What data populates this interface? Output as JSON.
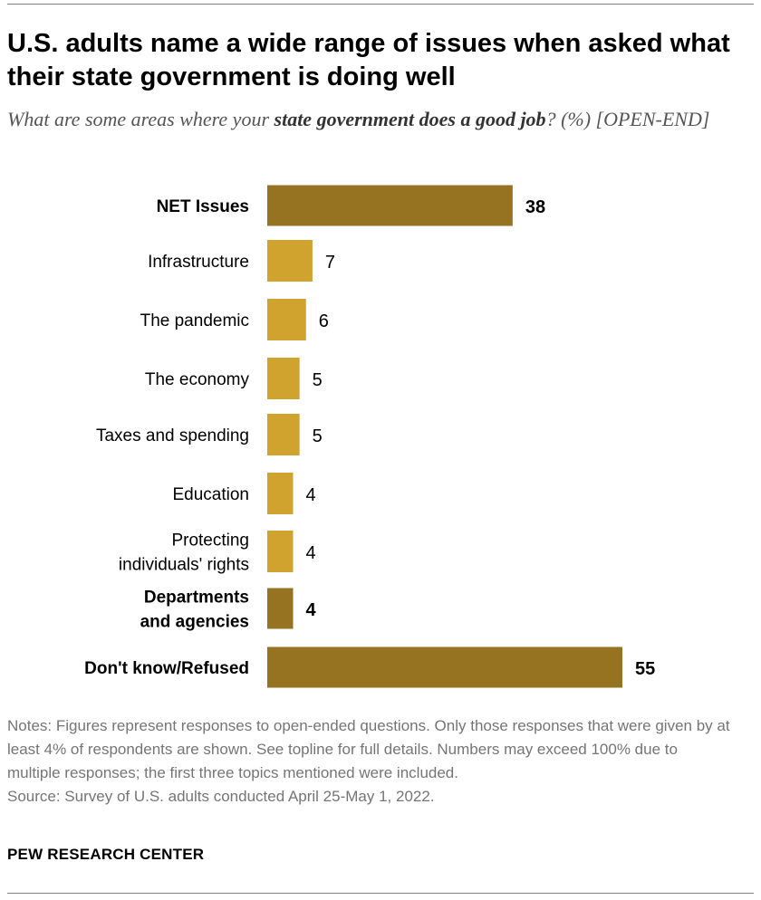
{
  "title": "U.S. adults name a wide range of issues when asked what their state government is doing well",
  "subtitle": {
    "part1": "What are some areas where your ",
    "bold": "state government does a good job",
    "part2": "? (%) [OPEN-END]"
  },
  "chart_data": {
    "type": "bar",
    "orientation": "horizontal",
    "title": "U.S. adults name a wide range of issues when asked what their state government is doing well",
    "xlabel": "",
    "ylabel": "",
    "categories": [
      [
        "NET Issues"
      ],
      [
        "Infrastructure"
      ],
      [
        "The pandemic"
      ],
      [
        "The economy"
      ],
      [
        "Taxes and spending"
      ],
      [
        "Education"
      ],
      [
        "Protecting",
        "individuals' rights"
      ],
      [
        "Departments",
        "and agencies"
      ],
      [
        "Don't know/Refused"
      ]
    ],
    "values": [
      38,
      7,
      6,
      5,
      5,
      4,
      4,
      4,
      55
    ],
    "emphasis": [
      true,
      false,
      false,
      false,
      false,
      false,
      false,
      true,
      true
    ],
    "colors": {
      "net": "#957320",
      "item": "#d0a22e"
    },
    "xlim": [
      0,
      55
    ]
  },
  "notes": "Notes: Figures represent responses to open-ended questions. Only those responses that were given by at least 4% of respondents are shown. See topline for full details. Numbers may exceed 100% due to multiple responses; the first three topics mentioned were included.",
  "source": "Source: Survey of U.S. adults conducted April 25-May 1, 2022.",
  "brand": "PEW RESEARCH CENTER"
}
